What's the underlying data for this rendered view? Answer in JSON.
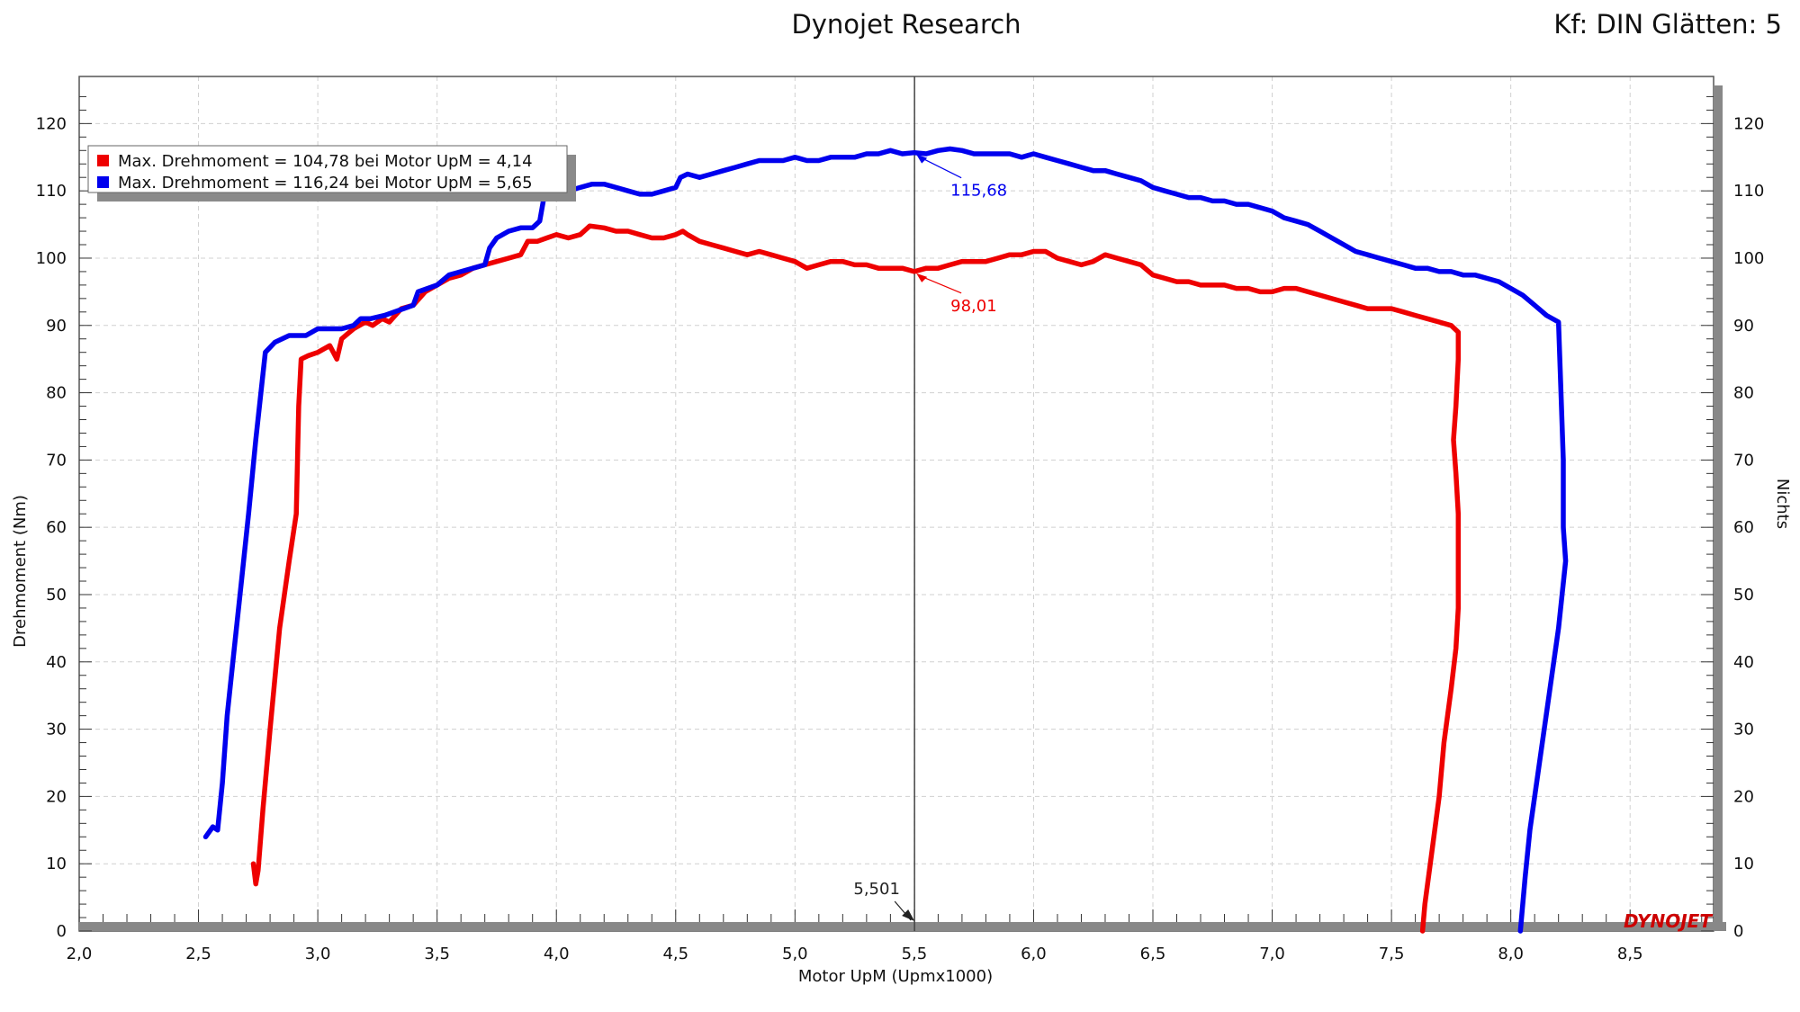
{
  "header": {
    "title": "Dynojet Research",
    "settings": "Kf: DIN Glätten: 5"
  },
  "chart_data": {
    "type": "line",
    "title": "Dynojet Research",
    "xlabel": "Motor UpM (Upmx1000)",
    "ylabel": "Drehmoment (Nm)",
    "y2label": "Nichts",
    "xlim": [
      2.0,
      8.85
    ],
    "ylim": [
      0,
      127
    ],
    "x_ticks": [
      "2,0",
      "2,5",
      "3,0",
      "3,5",
      "4,0",
      "4,5",
      "5,0",
      "5,5",
      "6,0",
      "6,5",
      "7,0",
      "7,5",
      "8,0",
      "8,5"
    ],
    "x_tick_values": [
      2.0,
      2.5,
      3.0,
      3.5,
      4.0,
      4.5,
      5.0,
      5.5,
      6.0,
      6.5,
      7.0,
      7.5,
      8.0,
      8.5
    ],
    "y_ticks": [
      "0",
      "10",
      "20",
      "30",
      "40",
      "50",
      "60",
      "70",
      "80",
      "90",
      "100",
      "110",
      "120"
    ],
    "y_tick_values": [
      0,
      10,
      20,
      30,
      40,
      50,
      60,
      70,
      80,
      90,
      100,
      110,
      120
    ],
    "grid": true,
    "legend_position": "top-left",
    "cursor": {
      "x": 5.501,
      "label": "5,501"
    },
    "series": [
      {
        "name": "Max. Drehmoment = 104,78 bei Motor UpM = 4,14",
        "color": "#ee0000",
        "cursor_label": "98,01",
        "cursor_value": 98.01,
        "points": [
          [
            2.73,
            10
          ],
          [
            2.74,
            7
          ],
          [
            2.75,
            9
          ],
          [
            2.77,
            18
          ],
          [
            2.8,
            30
          ],
          [
            2.84,
            45
          ],
          [
            2.88,
            55
          ],
          [
            2.91,
            62
          ],
          [
            2.92,
            78
          ],
          [
            2.93,
            85
          ],
          [
            2.96,
            85.5
          ],
          [
            3.0,
            86
          ],
          [
            3.05,
            87
          ],
          [
            3.08,
            85
          ],
          [
            3.1,
            88
          ],
          [
            3.15,
            89.5
          ],
          [
            3.2,
            90.5
          ],
          [
            3.23,
            90
          ],
          [
            3.27,
            91
          ],
          [
            3.3,
            90.5
          ],
          [
            3.35,
            92.5
          ],
          [
            3.4,
            93
          ],
          [
            3.45,
            95
          ],
          [
            3.5,
            96
          ],
          [
            3.55,
            97
          ],
          [
            3.6,
            97.5
          ],
          [
            3.65,
            98.5
          ],
          [
            3.7,
            99
          ],
          [
            3.75,
            99.5
          ],
          [
            3.8,
            100
          ],
          [
            3.85,
            100.5
          ],
          [
            3.88,
            102.5
          ],
          [
            3.92,
            102.5
          ],
          [
            3.96,
            103
          ],
          [
            4.0,
            103.5
          ],
          [
            4.05,
            103
          ],
          [
            4.1,
            103.5
          ],
          [
            4.14,
            104.78
          ],
          [
            4.2,
            104.5
          ],
          [
            4.25,
            104
          ],
          [
            4.3,
            104
          ],
          [
            4.35,
            103.5
          ],
          [
            4.4,
            103
          ],
          [
            4.45,
            103
          ],
          [
            4.5,
            103.5
          ],
          [
            4.53,
            104
          ],
          [
            4.55,
            103.5
          ],
          [
            4.6,
            102.5
          ],
          [
            4.65,
            102
          ],
          [
            4.7,
            101.5
          ],
          [
            4.75,
            101
          ],
          [
            4.8,
            100.5
          ],
          [
            4.85,
            101
          ],
          [
            4.9,
            100.5
          ],
          [
            4.95,
            100
          ],
          [
            5.0,
            99.5
          ],
          [
            5.05,
            98.5
          ],
          [
            5.1,
            99
          ],
          [
            5.15,
            99.5
          ],
          [
            5.2,
            99.5
          ],
          [
            5.25,
            99
          ],
          [
            5.3,
            99
          ],
          [
            5.35,
            98.5
          ],
          [
            5.4,
            98.5
          ],
          [
            5.45,
            98.5
          ],
          [
            5.5,
            98.01
          ],
          [
            5.55,
            98.5
          ],
          [
            5.6,
            98.5
          ],
          [
            5.65,
            99
          ],
          [
            5.7,
            99.5
          ],
          [
            5.75,
            99.5
          ],
          [
            5.8,
            99.5
          ],
          [
            5.85,
            100
          ],
          [
            5.9,
            100.5
          ],
          [
            5.95,
            100.5
          ],
          [
            6.0,
            101
          ],
          [
            6.05,
            101
          ],
          [
            6.1,
            100
          ],
          [
            6.15,
            99.5
          ],
          [
            6.2,
            99
          ],
          [
            6.25,
            99.5
          ],
          [
            6.3,
            100.5
          ],
          [
            6.35,
            100
          ],
          [
            6.4,
            99.5
          ],
          [
            6.45,
            99
          ],
          [
            6.5,
            97.5
          ],
          [
            6.55,
            97
          ],
          [
            6.6,
            96.5
          ],
          [
            6.65,
            96.5
          ],
          [
            6.7,
            96
          ],
          [
            6.75,
            96
          ],
          [
            6.8,
            96
          ],
          [
            6.85,
            95.5
          ],
          [
            6.9,
            95.5
          ],
          [
            6.95,
            95
          ],
          [
            7.0,
            95
          ],
          [
            7.05,
            95.5
          ],
          [
            7.1,
            95.5
          ],
          [
            7.15,
            95
          ],
          [
            7.2,
            94.5
          ],
          [
            7.25,
            94
          ],
          [
            7.3,
            93.5
          ],
          [
            7.35,
            93
          ],
          [
            7.4,
            92.5
          ],
          [
            7.45,
            92.5
          ],
          [
            7.5,
            92.5
          ],
          [
            7.55,
            92
          ],
          [
            7.6,
            91.5
          ],
          [
            7.65,
            91
          ],
          [
            7.7,
            90.5
          ],
          [
            7.75,
            90
          ],
          [
            7.78,
            89
          ],
          [
            7.78,
            85
          ],
          [
            7.77,
            78
          ],
          [
            7.76,
            73
          ],
          [
            7.77,
            68
          ],
          [
            7.78,
            62
          ],
          [
            7.78,
            55
          ],
          [
            7.78,
            48
          ],
          [
            7.77,
            42
          ],
          [
            7.75,
            36
          ],
          [
            7.72,
            28
          ],
          [
            7.7,
            20
          ],
          [
            7.67,
            12
          ],
          [
            7.64,
            4
          ],
          [
            7.63,
            0
          ]
        ]
      },
      {
        "name": "Max. Drehmoment = 116,24 bei Motor UpM = 5,65",
        "color": "#0000ee",
        "cursor_label": "115,68",
        "cursor_value": 115.68,
        "points": [
          [
            2.53,
            14
          ],
          [
            2.56,
            15.5
          ],
          [
            2.58,
            15
          ],
          [
            2.6,
            22
          ],
          [
            2.62,
            32
          ],
          [
            2.65,
            42
          ],
          [
            2.68,
            52
          ],
          [
            2.71,
            62
          ],
          [
            2.74,
            73
          ],
          [
            2.78,
            86
          ],
          [
            2.82,
            87.5
          ],
          [
            2.88,
            88.5
          ],
          [
            2.95,
            88.5
          ],
          [
            3.0,
            89.5
          ],
          [
            3.05,
            89.5
          ],
          [
            3.1,
            89.5
          ],
          [
            3.15,
            90
          ],
          [
            3.18,
            91
          ],
          [
            3.22,
            91
          ],
          [
            3.28,
            91.5
          ],
          [
            3.32,
            92
          ],
          [
            3.36,
            92.5
          ],
          [
            3.4,
            93
          ],
          [
            3.42,
            95
          ],
          [
            3.46,
            95.5
          ],
          [
            3.5,
            96
          ],
          [
            3.55,
            97.5
          ],
          [
            3.6,
            98
          ],
          [
            3.65,
            98.5
          ],
          [
            3.7,
            99
          ],
          [
            3.72,
            101.5
          ],
          [
            3.75,
            103
          ],
          [
            3.8,
            104
          ],
          [
            3.85,
            104.5
          ],
          [
            3.9,
            104.5
          ],
          [
            3.93,
            105.5
          ],
          [
            3.95,
            109.5
          ],
          [
            4.0,
            110
          ],
          [
            4.05,
            110
          ],
          [
            4.1,
            110.5
          ],
          [
            4.15,
            111
          ],
          [
            4.2,
            111
          ],
          [
            4.25,
            110.5
          ],
          [
            4.3,
            110
          ],
          [
            4.35,
            109.5
          ],
          [
            4.4,
            109.5
          ],
          [
            4.45,
            110
          ],
          [
            4.5,
            110.5
          ],
          [
            4.52,
            112
          ],
          [
            4.55,
            112.5
          ],
          [
            4.6,
            112
          ],
          [
            4.65,
            112.5
          ],
          [
            4.7,
            113
          ],
          [
            4.75,
            113.5
          ],
          [
            4.8,
            114
          ],
          [
            4.85,
            114.5
          ],
          [
            4.9,
            114.5
          ],
          [
            4.95,
            114.5
          ],
          [
            5.0,
            115
          ],
          [
            5.05,
            114.5
          ],
          [
            5.1,
            114.5
          ],
          [
            5.15,
            115
          ],
          [
            5.2,
            115
          ],
          [
            5.25,
            115
          ],
          [
            5.3,
            115.5
          ],
          [
            5.35,
            115.5
          ],
          [
            5.4,
            116
          ],
          [
            5.45,
            115.5
          ],
          [
            5.5,
            115.68
          ],
          [
            5.55,
            115.5
          ],
          [
            5.6,
            116
          ],
          [
            5.65,
            116.24
          ],
          [
            5.7,
            116
          ],
          [
            5.75,
            115.5
          ],
          [
            5.8,
            115.5
          ],
          [
            5.85,
            115.5
          ],
          [
            5.9,
            115.5
          ],
          [
            5.95,
            115
          ],
          [
            6.0,
            115.5
          ],
          [
            6.05,
            115
          ],
          [
            6.1,
            114.5
          ],
          [
            6.15,
            114
          ],
          [
            6.2,
            113.5
          ],
          [
            6.25,
            113
          ],
          [
            6.3,
            113
          ],
          [
            6.35,
            112.5
          ],
          [
            6.4,
            112
          ],
          [
            6.45,
            111.5
          ],
          [
            6.5,
            110.5
          ],
          [
            6.55,
            110
          ],
          [
            6.6,
            109.5
          ],
          [
            6.65,
            109
          ],
          [
            6.7,
            109
          ],
          [
            6.75,
            108.5
          ],
          [
            6.8,
            108.5
          ],
          [
            6.85,
            108
          ],
          [
            6.9,
            108
          ],
          [
            6.95,
            107.5
          ],
          [
            7.0,
            107
          ],
          [
            7.05,
            106
          ],
          [
            7.1,
            105.5
          ],
          [
            7.15,
            105
          ],
          [
            7.2,
            104
          ],
          [
            7.25,
            103
          ],
          [
            7.3,
            102
          ],
          [
            7.35,
            101
          ],
          [
            7.4,
            100.5
          ],
          [
            7.45,
            100
          ],
          [
            7.5,
            99.5
          ],
          [
            7.55,
            99
          ],
          [
            7.6,
            98.5
          ],
          [
            7.65,
            98.5
          ],
          [
            7.7,
            98
          ],
          [
            7.75,
            98
          ],
          [
            7.8,
            97.5
          ],
          [
            7.85,
            97.5
          ],
          [
            7.9,
            97
          ],
          [
            7.95,
            96.5
          ],
          [
            8.0,
            95.5
          ],
          [
            8.05,
            94.5
          ],
          [
            8.1,
            93
          ],
          [
            8.15,
            91.5
          ],
          [
            8.2,
            90.5
          ],
          [
            8.21,
            80.5
          ],
          [
            8.22,
            70
          ],
          [
            8.22,
            60
          ],
          [
            8.23,
            55
          ],
          [
            8.2,
            45
          ],
          [
            8.16,
            35
          ],
          [
            8.12,
            25
          ],
          [
            8.08,
            15
          ],
          [
            8.06,
            8
          ],
          [
            8.04,
            0
          ]
        ]
      }
    ]
  }
}
